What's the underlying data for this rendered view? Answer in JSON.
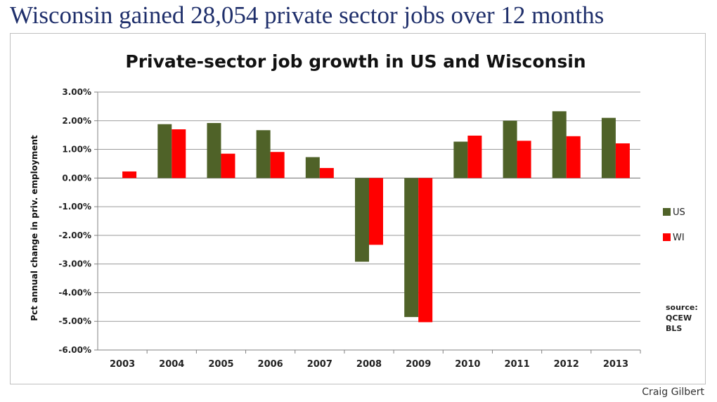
{
  "headline": "Wisconsin gained 28,054 private sector jobs over 12 months",
  "credit": "Craig Gilbert",
  "source_note": [
    "source:",
    "QCEW",
    "BLS"
  ],
  "colors": {
    "us": "#4f6228",
    "wi": "#ff0000",
    "headline": "#1f2f6b"
  },
  "chart_data": {
    "type": "bar",
    "title": "Private-sector job growth in US and Wisconsin",
    "ylabel": "Pct annual change in priv. employment",
    "xlabel": "",
    "categories": [
      "2003",
      "2004",
      "2005",
      "2006",
      "2007",
      "2008",
      "2009",
      "2010",
      "2011",
      "2012",
      "2013"
    ],
    "series": [
      {
        "name": "US",
        "color": "#4f6228",
        "values": [
          null,
          1.88,
          1.92,
          1.67,
          0.73,
          -2.92,
          -4.85,
          1.27,
          2.0,
          2.33,
          2.1
        ]
      },
      {
        "name": "WI",
        "color": "#ff0000",
        "values": [
          0.23,
          1.7,
          0.85,
          0.91,
          0.35,
          -2.33,
          -5.03,
          1.48,
          1.3,
          1.46,
          1.21
        ]
      }
    ],
    "ylim": [
      -6,
      3
    ],
    "yticks": [
      3,
      2,
      1,
      0,
      -1,
      -2,
      -3,
      -4,
      -5,
      -6
    ],
    "ytick_labels": [
      "3.00%",
      "2.00%",
      "1.00%",
      "0.00%",
      "-1.00%",
      "-2.00%",
      "-3.00%",
      "-4.00%",
      "-5.00%",
      "-6.00%"
    ],
    "grid": true,
    "legend": "right"
  }
}
